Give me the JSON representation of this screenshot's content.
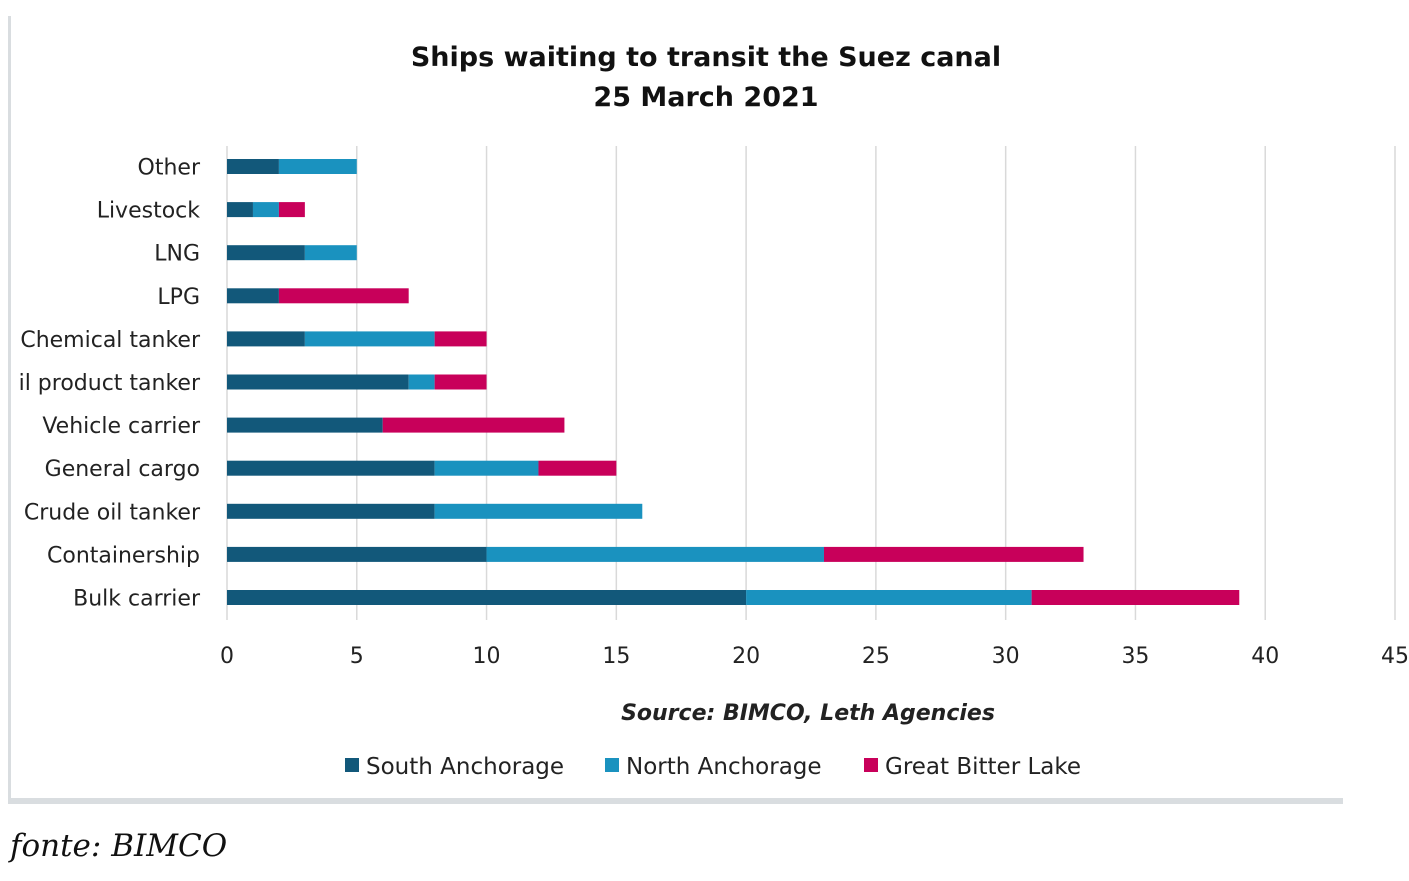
{
  "chart_data": {
    "type": "bar",
    "orientation": "horizontal",
    "stacked": true,
    "title": [
      "Ships waiting to transit the Suez canal",
      "25 March 2021"
    ],
    "categories": [
      "Other",
      "Livestock",
      "LNG",
      "LPG",
      "Chemical tanker",
      "il product tanker",
      "Vehicle carrier",
      "General cargo",
      "Crude oil tanker",
      "Containership",
      "Bulk carrier"
    ],
    "series": [
      {
        "name": "South Anchorage",
        "color": "#12587a",
        "values": [
          2,
          1,
          3,
          2,
          3,
          7,
          6,
          8,
          8,
          10,
          20
        ]
      },
      {
        "name": "North Anchorage",
        "color": "#1a92bf",
        "values": [
          3,
          1,
          2,
          0,
          5,
          1,
          0,
          4,
          8,
          13,
          11
        ]
      },
      {
        "name": "Great Bitter Lake",
        "color": "#c8005a",
        "values": [
          0,
          1,
          0,
          5,
          2,
          2,
          7,
          3,
          0,
          10,
          8
        ]
      }
    ],
    "xlim": [
      0,
      45
    ],
    "xticks": [
      "0",
      "5",
      "10",
      "15",
      "20",
      "25",
      "30",
      "35",
      "40",
      "45"
    ],
    "grid": true,
    "legend_position": "bottom",
    "source_note": "Source: BIMCO, Leth Agencies"
  },
  "caption": "fonte: BIMCO"
}
